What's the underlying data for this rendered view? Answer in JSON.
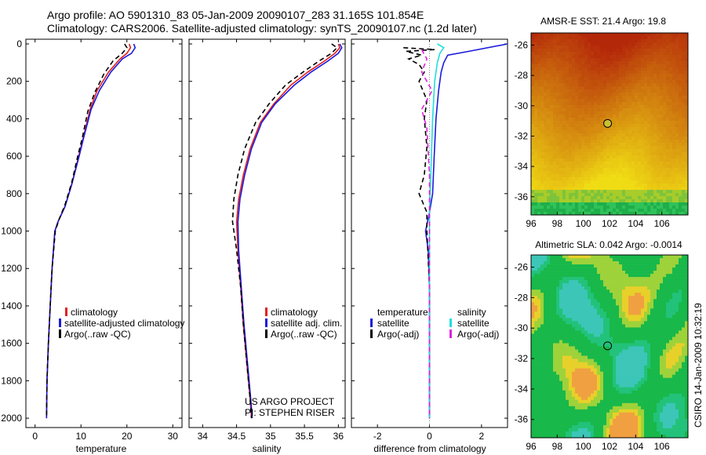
{
  "header": {
    "line1": "Argo profile: AO 5901310_83 05-Jan-2009 20090107_283 31.165S 101.854E",
    "line2": "Climatology: CARS2006. Satellite-adjusted climatology: synTS_20090107.nc (1.2d later)"
  },
  "colors": {
    "climatology": "#e02020",
    "satellite": "#1a1adc",
    "argo": "#000000",
    "sat_salinity": "#22dddd",
    "argo_adj_salinity": "#dd22dd"
  },
  "chart_data": [
    {
      "type": "line",
      "xlabel": "temperature",
      "ylabel": "",
      "xlim": [
        -2,
        32
      ],
      "ylim": [
        0,
        2050
      ],
      "y_reversed": true,
      "xticks": [
        0,
        10,
        20,
        30
      ],
      "yticks": [
        0,
        200,
        400,
        600,
        800,
        1000,
        1200,
        1400,
        1600,
        1800,
        2000
      ],
      "legend": [
        "climatology",
        "satellite-adjusted climatology",
        "Argo(..raw -QC)"
      ],
      "series": [
        {
          "name": "climatology",
          "color": "#e02020",
          "dash": "",
          "points": [
            [
              20.5,
              0
            ],
            [
              20.8,
              20
            ],
            [
              20.0,
              50
            ],
            [
              18.5,
              80
            ],
            [
              16.0,
              150
            ],
            [
              13.5,
              250
            ],
            [
              12.0,
              350
            ],
            [
              10.5,
              500
            ],
            [
              9.5,
              600
            ],
            [
              8.0,
              750
            ],
            [
              6.5,
              870
            ],
            [
              5.0,
              950
            ],
            [
              4.3,
              1000
            ],
            [
              3.7,
              1200
            ],
            [
              3.3,
              1400
            ],
            [
              2.9,
              1600
            ],
            [
              2.6,
              1800
            ],
            [
              2.5,
              2000
            ]
          ]
        },
        {
          "name": "satellite-adjusted climatology",
          "color": "#1a1adc",
          "dash": "",
          "points": [
            [
              21.5,
              0
            ],
            [
              21.8,
              20
            ],
            [
              21.0,
              50
            ],
            [
              19.0,
              80
            ],
            [
              16.5,
              150
            ],
            [
              14.0,
              250
            ],
            [
              12.2,
              350
            ],
            [
              10.6,
              500
            ],
            [
              9.6,
              600
            ],
            [
              8.0,
              750
            ],
            [
              6.5,
              870
            ],
            [
              5.0,
              950
            ],
            [
              4.3,
              1000
            ],
            [
              3.7,
              1200
            ],
            [
              3.3,
              1400
            ],
            [
              2.9,
              1600
            ],
            [
              2.6,
              1800
            ],
            [
              2.5,
              2000
            ]
          ]
        },
        {
          "name": "Argo(..raw -QC)",
          "color": "#000000",
          "dash": "6,4",
          "points": [
            [
              19.5,
              0
            ],
            [
              20.0,
              20
            ],
            [
              19.0,
              50
            ],
            [
              17.0,
              90
            ],
            [
              15.0,
              160
            ],
            [
              13.0,
              260
            ],
            [
              11.5,
              360
            ],
            [
              10.3,
              500
            ],
            [
              9.3,
              600
            ],
            [
              8.0,
              740
            ],
            [
              6.5,
              860
            ],
            [
              5.2,
              940
            ],
            [
              4.4,
              1000
            ],
            [
              3.7,
              1200
            ],
            [
              3.3,
              1400
            ],
            [
              2.9,
              1600
            ],
            [
              2.6,
              1800
            ],
            [
              2.5,
              2000
            ]
          ]
        }
      ]
    },
    {
      "type": "line",
      "xlabel": "salinity",
      "ylabel": "",
      "xlim": [
        33.8,
        36.1
      ],
      "ylim": [
        0,
        2050
      ],
      "y_reversed": true,
      "xticks": [
        34,
        34.5,
        35,
        35.5,
        36
      ],
      "legend": [
        "climatology",
        "satellite adj. clim.",
        "Argo(..raw -QC)"
      ],
      "series": [
        {
          "name": "climatology",
          "color": "#e02020",
          "dash": "",
          "points": [
            [
              36.0,
              0
            ],
            [
              36.02,
              20
            ],
            [
              35.95,
              50
            ],
            [
              35.8,
              90
            ],
            [
              35.55,
              150
            ],
            [
              35.3,
              220
            ],
            [
              35.05,
              320
            ],
            [
              34.85,
              420
            ],
            [
              34.7,
              560
            ],
            [
              34.6,
              700
            ],
            [
              34.53,
              830
            ],
            [
              34.5,
              950
            ],
            [
              34.52,
              1100
            ],
            [
              34.56,
              1300
            ],
            [
              34.6,
              1500
            ],
            [
              34.65,
              1700
            ],
            [
              34.7,
              1900
            ],
            [
              34.72,
              2000
            ]
          ]
        },
        {
          "name": "satellite adj. clim.",
          "color": "#1a1adc",
          "dash": "",
          "points": [
            [
              36.02,
              0
            ],
            [
              36.05,
              20
            ],
            [
              36.0,
              50
            ],
            [
              35.85,
              90
            ],
            [
              35.6,
              150
            ],
            [
              35.35,
              220
            ],
            [
              35.07,
              320
            ],
            [
              34.87,
              420
            ],
            [
              34.72,
              560
            ],
            [
              34.62,
              700
            ],
            [
              34.55,
              830
            ],
            [
              34.52,
              950
            ],
            [
              34.53,
              1100
            ],
            [
              34.57,
              1300
            ],
            [
              34.61,
              1500
            ],
            [
              34.66,
              1700
            ],
            [
              34.71,
              1900
            ],
            [
              34.73,
              2000
            ]
          ]
        },
        {
          "name": "Argo(..raw -QC)",
          "color": "#000000",
          "dash": "6,4",
          "points": [
            [
              35.9,
              0
            ],
            [
              35.98,
              20
            ],
            [
              35.9,
              50
            ],
            [
              35.72,
              90
            ],
            [
              35.48,
              150
            ],
            [
              35.22,
              220
            ],
            [
              34.98,
              320
            ],
            [
              34.78,
              420
            ],
            [
              34.62,
              560
            ],
            [
              34.52,
              700
            ],
            [
              34.46,
              830
            ],
            [
              34.44,
              950
            ],
            [
              34.5,
              1100
            ],
            [
              34.56,
              1300
            ],
            [
              34.6,
              1500
            ],
            [
              34.65,
              1700
            ],
            [
              34.7,
              1900
            ],
            [
              34.72,
              2000
            ]
          ]
        }
      ]
    },
    {
      "type": "line",
      "xlabel": "difference from climatology",
      "ylabel": "",
      "xlim": [
        -3,
        3
      ],
      "ylim": [
        0,
        2050
      ],
      "y_reversed": true,
      "xticks": [
        -2,
        0,
        2
      ],
      "legend_groups": [
        {
          "title": "temperature",
          "entries": [
            "satellite",
            "Argo(-adj)"
          ]
        },
        {
          "title": "salinity",
          "entries": [
            "satellite",
            "Argo(-adj)"
          ]
        }
      ],
      "series": [
        {
          "name": "temperature satellite",
          "color": "#1a1adc",
          "dash": "",
          "points": [
            [
              3.0,
              0
            ],
            [
              1.5,
              40
            ],
            [
              0.7,
              60
            ],
            [
              0.55,
              100
            ],
            [
              0.45,
              150
            ],
            [
              0.35,
              250
            ],
            [
              0.25,
              400
            ],
            [
              0.18,
              600
            ],
            [
              0.12,
              800
            ],
            [
              0.0,
              900
            ],
            [
              -0.15,
              1000
            ],
            [
              -0.05,
              1100
            ],
            [
              0.0,
              1300
            ],
            [
              0.0,
              2000
            ]
          ]
        },
        {
          "name": "temperature Argo(-adj)",
          "color": "#000000",
          "dash": "6,4",
          "points": [
            [
              -1.0,
              20
            ],
            [
              0.2,
              30
            ],
            [
              -0.9,
              40
            ],
            [
              -0.3,
              60
            ],
            [
              -0.8,
              80
            ],
            [
              -0.4,
              110
            ],
            [
              -0.2,
              150
            ],
            [
              -0.4,
              200
            ],
            [
              -0.1,
              300
            ],
            [
              -0.2,
              400
            ],
            [
              -0.1,
              550
            ],
            [
              -0.2,
              700
            ],
            [
              -0.4,
              800
            ],
            [
              -0.1,
              900
            ],
            [
              -0.1,
              1000
            ],
            [
              0.0,
              1300
            ],
            [
              0.0,
              2000
            ]
          ]
        },
        {
          "name": "salinity satellite",
          "color": "#22dddd",
          "dash": "",
          "points": [
            [
              0.3,
              0
            ],
            [
              0.55,
              20
            ],
            [
              0.4,
              50
            ],
            [
              0.3,
              100
            ],
            [
              0.2,
              200
            ],
            [
              0.12,
              400
            ],
            [
              0.05,
              700
            ],
            [
              0.0,
              900
            ],
            [
              0.0,
              2000
            ]
          ]
        },
        {
          "name": "salinity Argo(-adj)",
          "color": "#dd22dd",
          "dash": "6,4",
          "points": [
            [
              -0.3,
              30
            ],
            [
              -0.1,
              80
            ],
            [
              -0.3,
              150
            ],
            [
              0.1,
              250
            ],
            [
              -0.3,
              350
            ],
            [
              -0.1,
              450
            ],
            [
              0.0,
              700
            ],
            [
              0.0,
              2000
            ]
          ]
        }
      ]
    },
    {
      "type": "heatmap",
      "title": "AMSR-E SST: 21.4 Argo: 19.8",
      "xticks": [
        96,
        98,
        100,
        102,
        104,
        106
      ],
      "yticks": [
        -26,
        -28,
        -30,
        -32,
        -34,
        -36
      ],
      "xlim": [
        96,
        108
      ],
      "ylim": [
        -37.2,
        -25.2
      ],
      "marker": [
        101.854,
        -31.165
      ]
    },
    {
      "type": "heatmap",
      "title": "Altimetric SLA: 0.042 Argo: -0.0014",
      "xticks": [
        96,
        98,
        100,
        102,
        104,
        106
      ],
      "yticks": [
        -26,
        -28,
        -30,
        -32,
        -34,
        -36
      ],
      "xlim": [
        96,
        108
      ],
      "ylim": [
        -37.2,
        -25.2
      ],
      "marker": [
        101.854,
        -31.165
      ]
    }
  ],
  "annotations": {
    "project": "US ARGO PROJECT",
    "pi": "PI: STEPHEN RISER",
    "credit": "CSIRO 14-Jan-2009 10:32:19"
  }
}
